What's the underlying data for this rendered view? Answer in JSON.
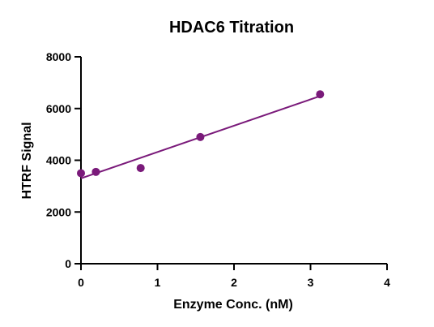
{
  "chart_data": {
    "type": "scatter",
    "title": "HDAC6 Titration",
    "xlabel": "Enzyme Conc. (nM)",
    "ylabel": "HTRF Signal",
    "xlim": [
      0,
      4
    ],
    "ylim": [
      0,
      8000
    ],
    "xticks": [
      0,
      1,
      2,
      3,
      4
    ],
    "yticks": [
      0,
      2000,
      4000,
      6000,
      8000
    ],
    "grid": false,
    "series": [
      {
        "color": "#7a1a7a",
        "x": [
          0,
          0.195,
          0.78,
          1.56,
          3.125
        ],
        "y": [
          3500,
          3550,
          3700,
          4900,
          6550
        ],
        "fit": {
          "type": "linear",
          "x": [
            0,
            3.125
          ],
          "y": [
            3300,
            6480
          ]
        }
      }
    ]
  }
}
